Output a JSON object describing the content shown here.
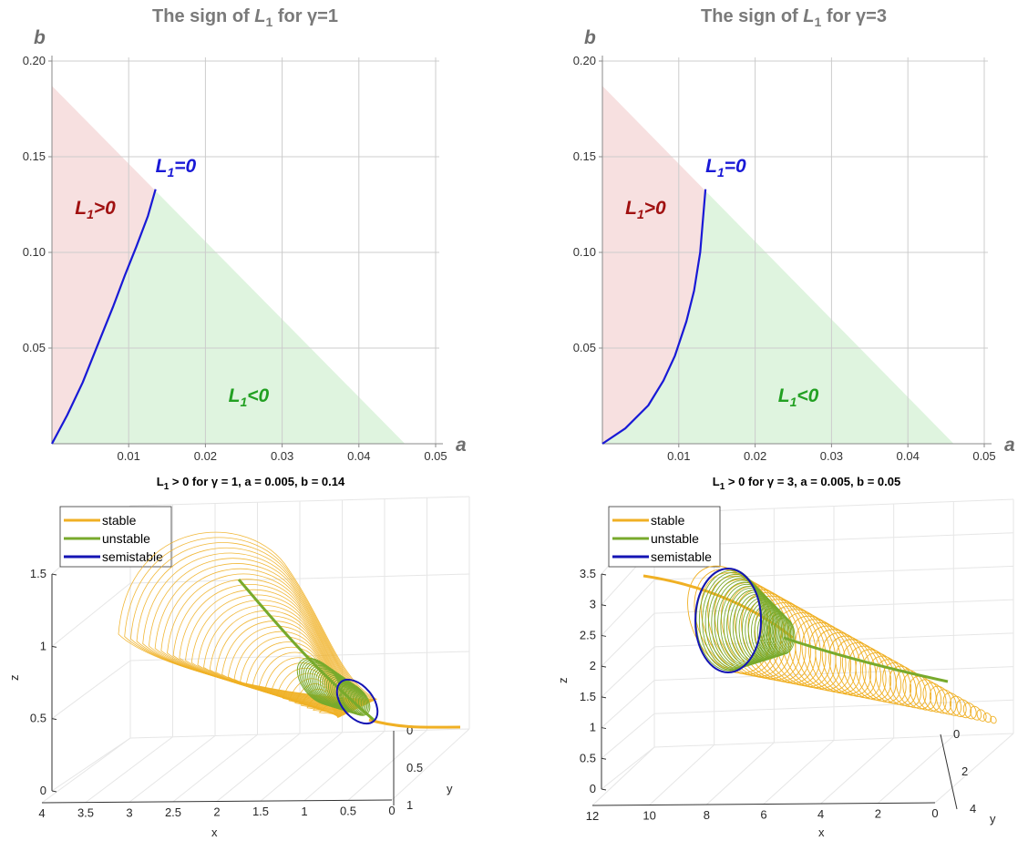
{
  "colors": {
    "region_pos": "#f7e0e0",
    "region_neg": "#dff4df",
    "curve": "#1919d6",
    "label_pos": "#a01010",
    "label_neg": "#22a022",
    "label_zero": "#1919d6",
    "stable": "#f0b024",
    "unstable": "#78aa2c",
    "semistable": "#1414b4"
  },
  "chart_data": [
    {
      "type": "area",
      "title": "The sign of L1 for γ=1",
      "title_main": "The sign of ",
      "title_sym": "L",
      "title_sub": "1",
      "title_tail": " for γ=1",
      "xlabel": "a",
      "ylabel": "b",
      "xlim": [
        0,
        0.05
      ],
      "ylim": [
        0,
        0.2
      ],
      "xticks": [
        "0.01",
        "0.02",
        "0.03",
        "0.04",
        "0.05"
      ],
      "yticks": [
        "0.05",
        "0.10",
        "0.15",
        "0.20"
      ],
      "grid": true,
      "region_boundary": [
        [
          0,
          0.187
        ],
        [
          0.046,
          0
        ]
      ],
      "curve": {
        "name": "L1=0",
        "x": [
          0,
          0.002,
          0.004,
          0.006,
          0.008,
          0.0095,
          0.011,
          0.0125,
          0.0135
        ],
        "y": [
          0,
          0.015,
          0.032,
          0.052,
          0.072,
          0.088,
          0.103,
          0.119,
          0.133
        ]
      },
      "labels": [
        {
          "sym": "L",
          "sub": "1",
          "rel": ">0",
          "x": 0.003,
          "y": 0.12,
          "kind": "pos"
        },
        {
          "sym": "L",
          "sub": "1",
          "rel": "=0",
          "x": 0.0135,
          "y": 0.142,
          "kind": "zero"
        },
        {
          "sym": "L",
          "sub": "1",
          "rel": "<0",
          "x": 0.023,
          "y": 0.022,
          "kind": "neg"
        }
      ]
    },
    {
      "type": "area",
      "title": "The sign of L1 for γ=3",
      "title_main": "The sign of ",
      "title_sym": "L",
      "title_sub": "1",
      "title_tail": " for γ=3",
      "xlabel": "a",
      "ylabel": "b",
      "xlim": [
        0,
        0.05
      ],
      "ylim": [
        0,
        0.2
      ],
      "xticks": [
        "0.01",
        "0.02",
        "0.03",
        "0.04",
        "0.05"
      ],
      "yticks": [
        "0.05",
        "0.10",
        "0.15",
        "0.20"
      ],
      "grid": true,
      "region_boundary": [
        [
          0,
          0.187
        ],
        [
          0.046,
          0
        ]
      ],
      "curve": {
        "name": "L1=0",
        "x": [
          0,
          0.003,
          0.006,
          0.008,
          0.0095,
          0.011,
          0.012,
          0.0128,
          0.0135
        ],
        "y": [
          0,
          0.008,
          0.02,
          0.033,
          0.046,
          0.064,
          0.08,
          0.1,
          0.133
        ]
      },
      "labels": [
        {
          "sym": "L",
          "sub": "1",
          "rel": ">0",
          "x": 0.003,
          "y": 0.12,
          "kind": "pos"
        },
        {
          "sym": "L",
          "sub": "1",
          "rel": "=0",
          "x": 0.0135,
          "y": 0.142,
          "kind": "zero"
        },
        {
          "sym": "L",
          "sub": "1",
          "rel": "<0",
          "x": 0.023,
          "y": 0.022,
          "kind": "neg"
        }
      ]
    },
    {
      "type": "line",
      "title": "L1 > 0 for γ = 1, a = 0.005, b = 0.14",
      "title_pre": "L",
      "title_sub": "1",
      "title_post": " > 0 for γ = 1, a = 0.005, b = 0.14",
      "xlabel": "x",
      "ylabel": "y",
      "zlabel": "z",
      "xlim": [
        0,
        4
      ],
      "ylim": [
        0,
        1
      ],
      "zlim": [
        0,
        1.5
      ],
      "xticks": [
        "4",
        "3.5",
        "3",
        "2.5",
        "2",
        "1.5",
        "1",
        "0.5",
        "0"
      ],
      "yticks": [
        "0",
        "0.5",
        "1"
      ],
      "zticks": [
        "0",
        "0.5",
        "1",
        "1.5"
      ],
      "legend": [
        "stable",
        "unstable",
        "semistable"
      ],
      "legend_position": "top-left",
      "grid": true
    },
    {
      "type": "line",
      "title": "L1 > 0 for γ = 3, a = 0.005, b = 0.05",
      "title_pre": "L",
      "title_sub": "1",
      "title_post": " > 0 for γ = 3, a = 0.005, b = 0.05",
      "xlabel": "x",
      "ylabel": "y",
      "zlabel": "z",
      "xlim": [
        0,
        12
      ],
      "ylim": [
        0,
        4
      ],
      "zlim": [
        0,
        3.5
      ],
      "xticks": [
        "12",
        "10",
        "8",
        "6",
        "4",
        "2",
        "0"
      ],
      "yticks": [
        "0",
        "2",
        "4"
      ],
      "zticks": [
        "0",
        "0.5",
        "1",
        "1.5",
        "2",
        "2.5",
        "3",
        "3.5"
      ],
      "legend": [
        "stable",
        "unstable",
        "semistable"
      ],
      "legend_position": "top-left",
      "grid": true
    }
  ]
}
